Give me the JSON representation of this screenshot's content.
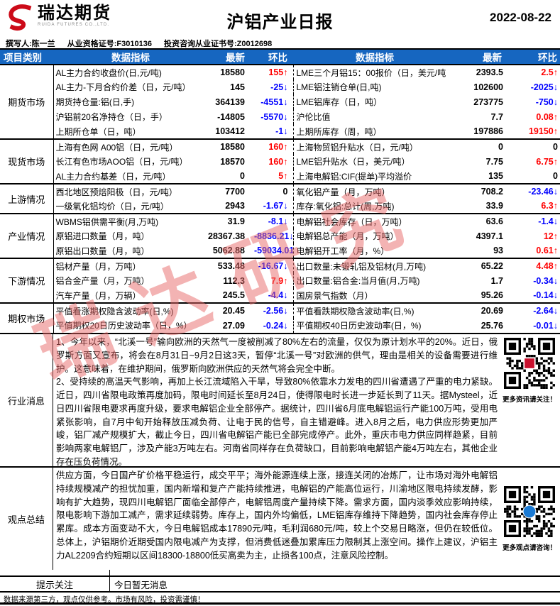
{
  "colors": {
    "header_bg": "#1666c0",
    "up": "#ff0000",
    "down": "#0000ff",
    "logo_red": "#cc0a18",
    "watermark": "#e86a6a"
  },
  "header": {
    "logo_cn": "瑞达期货",
    "logo_en": "RUIDA FUTURES CO.,LTD.",
    "title": "沪铝产业日报",
    "date": "2022-08-22",
    "author": "撰写人:陈一兰",
    "qual_no": "从业资格证号:F3010136",
    "advisory_no": "投资咨询从业证书号:Z0012698"
  },
  "table": {
    "columns": [
      "项目类别",
      "数据指标",
      "最新",
      "环比",
      "数据指标",
      "最新",
      "环比"
    ],
    "sections": [
      {
        "category": "期货市场",
        "rows": [
          {
            "l": {
              "label": "AL主力合约收盘价(日,元/吨)",
              "val": "18580",
              "chg": "155",
              "dir": "up"
            },
            "r": {
              "label": "LME三个月铝15：00报价（日，美元/吨",
              "val": "2393.5",
              "chg": "2.5",
              "dir": "up"
            }
          },
          {
            "l": {
              "label": "AL主力-下月合约价差（日，元/吨）",
              "val": "145",
              "chg": "-25",
              "dir": "down"
            },
            "r": {
              "label": "LME铝注销仓单(日,吨)",
              "val": "102600",
              "chg": "-2025",
              "dir": "down"
            }
          },
          {
            "l": {
              "label": "期货持仓量:铝(日,手)",
              "val": "364139",
              "chg": "-4551",
              "dir": "down"
            },
            "r": {
              "label": "LME铝库存（日，吨）",
              "val": "273775",
              "chg": "-750",
              "dir": "down"
            }
          },
          {
            "l": {
              "label": "沪铝前20名净持仓（日，手）",
              "val": "-14805",
              "chg": "-5570",
              "dir": "down"
            },
            "r": {
              "label": "沪伦比值",
              "val": "7.7",
              "chg": "0.08",
              "dir": "up"
            }
          },
          {
            "l": {
              "label": "上期所仓单（日，吨）",
              "val": "103412",
              "chg": "-1",
              "dir": "down"
            },
            "r": {
              "label": "上期所库存（周，吨）",
              "val": "197886",
              "chg": "19150",
              "dir": "up"
            }
          }
        ]
      },
      {
        "category": "现货市场",
        "rows": [
          {
            "l": {
              "label": "上海有色网 A00铝（日，元/吨）",
              "val": "18580",
              "chg": "160",
              "dir": "up"
            },
            "r": {
              "label": "上海物贸铝升贴水（日，元/吨）",
              "val": "0",
              "chg": "0",
              "dir": "flat"
            }
          },
          {
            "l": {
              "label": "长江有色市场AOO铝（日，元/吨）",
              "val": "18570",
              "chg": "160",
              "dir": "up"
            },
            "r": {
              "label": "LME铝升贴水（日，美元/吨）",
              "val": "7.75",
              "chg": "6.75",
              "dir": "up"
            }
          },
          {
            "l": {
              "label": "AL主力合约基差（日，元/吨）",
              "val": "0",
              "chg": "5",
              "dir": "up"
            },
            "r": {
              "label": "上海电解铝:CIF(提单)平均溢价",
              "val": "135",
              "chg": "0",
              "dir": "flat"
            }
          }
        ]
      },
      {
        "category": "上游情况",
        "rows": [
          {
            "l": {
              "label": "西北地区预焙阳极（日，元/吨）",
              "val": "7700",
              "chg": "0",
              "dir": "flat"
            },
            "r": {
              "label": "氧化铝产量（月，万吨）",
              "val": "708.2",
              "chg": "-23.46",
              "dir": "down"
            }
          },
          {
            "l": {
              "label": "一级氧化铝均价（日，元/吨）",
              "val": "2943",
              "chg": "-1.67",
              "dir": "down"
            },
            "r": {
              "label": "库存:氧化铝:总计(周,万吨)",
              "val": "33.9",
              "chg": "6.3",
              "dir": "up"
            }
          }
        ]
      },
      {
        "category": "产业情况",
        "rows": [
          {
            "l": {
              "label": "WBMS铝供需平衡(月,万吨)",
              "val": "31.9",
              "chg": "-8.1",
              "dir": "down"
            },
            "r": {
              "label": "电解铝社会库存（日，万吨）",
              "val": "63.6",
              "chg": "-1.4",
              "dir": "down"
            }
          },
          {
            "l": {
              "label": "原铝进口数量（月，吨）",
              "val": "28367.38",
              "chg": "-8836.21",
              "dir": "down"
            },
            "r": {
              "label": "电解铝总产能（月，万吨）",
              "val": "4397.1",
              "chg": "12",
              "dir": "up"
            }
          },
          {
            "l": {
              "label": "原铝出口数量（月，吨）",
              "val": "5062.88",
              "chg": "-59034.01",
              "dir": "down"
            },
            "r": {
              "label": "电解铝开工率（月，%）",
              "val": "93",
              "chg": "0.61",
              "dir": "up"
            }
          }
        ]
      },
      {
        "category": "下游情况",
        "rows": [
          {
            "l": {
              "label": "铝材产量（月，万吨）",
              "val": "533.48",
              "chg": "-16.67",
              "dir": "down"
            },
            "r": {
              "label": "出口数量:未锻轧铝及铝材(月,万吨)",
              "val": "65.22",
              "chg": "4.48",
              "dir": "up"
            }
          },
          {
            "l": {
              "label": "铝合金产量（月，万吨）",
              "val": "112.3",
              "chg": "7.9",
              "dir": "up"
            },
            "r": {
              "label": "出口数量:铝合金:当月值(月,万吨)",
              "val": "1.7",
              "chg": "-0.34",
              "dir": "down"
            }
          },
          {
            "l": {
              "label": "汽车产量（月，万辆）",
              "val": "245.5",
              "chg": "-4.4",
              "dir": "down"
            },
            "r": {
              "label": "国房景气指数（月）",
              "val": "95.26",
              "chg": "-0.14",
              "dir": "down"
            }
          }
        ]
      },
      {
        "category": "期权市场",
        "rows": [
          {
            "l": {
              "label": "平值看涨期权隐含波动率(日,%)",
              "val": "20.45",
              "chg": "-2.56",
              "dir": "down"
            },
            "r": {
              "label": "平值看跌期权隐含波动率(日,%)",
              "val": "20.69",
              "chg": "-2.64",
              "dir": "down"
            }
          },
          {
            "l": {
              "label": "平值期权20日历史波动率（日，%）",
              "val": "27.09",
              "chg": "-0.24",
              "dir": "down"
            },
            "r": {
              "label": "平值期权40日历史波动率(日，%)",
              "val": "25.76",
              "chg": "-0.01",
              "dir": "down"
            }
          }
        ]
      }
    ]
  },
  "news": {
    "category": "行业消息",
    "paragraphs": [
      "1、今年以来，“北溪一号”输向欧洲的天然气一度被削减了80%左右的流量，仅仅为原计划水平的20%。近日，俄罗斯方面又宣布，将会在8月31日~9月2日这3天，暂停“北溪一号”对欧洲的供气，理由是相关的设备需要进行维护。这意味着，在维护期间，俄罗斯向欧洲供应的天然气将会完全中断。",
      "2、受持续的高温天气影响，再加上长江流域陷入干旱，导致80%依靠水力发电的四川省遭遇了严重的电力紧缺。近日，四川省限电政策再度加码，限电时间延长至8月24日，使得限电时长进一步延长到了11天。据Mysteel，近日四川省限电要求再度升级，要求电解铝企业全部停产。据统计，四川省6月底电解铝运行产能100万吨，受用电紧张影响，自7月中旬开始释放压减负荷、让电于民的信号，自主错避峰。进入8月之后，电力供应形势更加严峻，铝厂减产规模扩大，截止今日，四川省电解铝产能已全部完成停产。此外，重庆市电力供应同样趋紧，目前影响两家电解铝厂，涉及产能3万吨左右。河南省同样存在负荷缺口，目前影响电解铝产能4万吨左右，其他企业存在压负荷情况。"
    ],
    "qr_caption": "更多资讯请关注！"
  },
  "summary": {
    "category": "观点总结",
    "paragraphs": [
      "供应方面，今日国产矿价格平稳运行，成交平平；海外能源连续上涨，接连关闭的冶炼厂，让市场对海外电解铝持续规模减产的担忧加重，国内新增和复产产能持续推进，电解铝的产能高位运行，川渝地区限电持续发酵，影响有扩大趋势，现四川电解铝厂面临全部停产，电解铝周度产量持续下降。需求方面，国内淡季效应影响持续，限电影响下游加工减产，需求延续弱势。库存上，国内外均偏低，LME铝库存维持下降趋势，国内社会库存停止累库。成本方面变动不大，今日电解铝成本17890元/吨，毛利润680元/吨，较上个交易日略涨，但仍在较低位。总体上，沪铝期价近期受国内限电减产为支撑，但消费低迷叠加累库压力限制其上涨空间。操作上建议，沪铝主力AL2209合约短期以区间18300-18800低买高卖为主，止损各100点，注意风险控制。"
    ],
    "qr_caption": "更多观点请咨询！"
  },
  "notice": {
    "category": "提示关注",
    "message": "今日暂无消息"
  },
  "footer": "数据来源第三方，观点仅供参考。市场有风险，投资需谨慎！",
  "watermark": "瑞达研究"
}
